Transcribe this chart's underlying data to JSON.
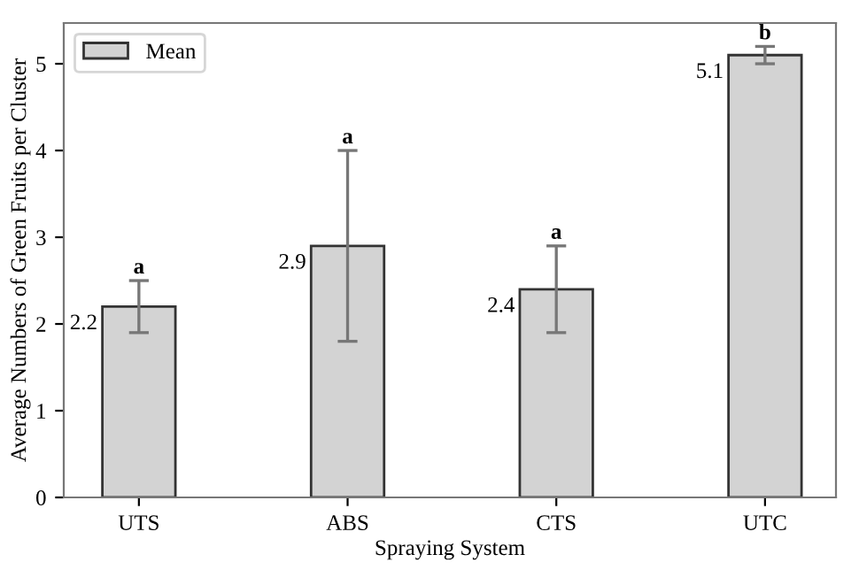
{
  "chart_data": {
    "type": "bar",
    "xlabel": "Spraying System",
    "ylabel": "Average Numbers of Green Fruits per Cluster",
    "categories": [
      "UTS",
      "ABS",
      "CTS",
      "UTC"
    ],
    "series": [
      {
        "name": "Mean",
        "color": "#d3d3d3",
        "values": [
          2.2,
          2.9,
          2.4,
          5.1
        ],
        "errors": [
          0.3,
          1.1,
          0.5,
          0.1
        ],
        "value_labels": [
          "2.2",
          "2.9",
          "2.4",
          "5.1"
        ]
      }
    ],
    "annotations": [
      {
        "text": "a",
        "x": "UTS",
        "y": 2.5
      },
      {
        "text": "a",
        "x": "ABS",
        "y": 4.0
      },
      {
        "text": "a",
        "x": "CTS",
        "y": 2.9
      },
      {
        "text": "b",
        "x": "UTC",
        "y": 5.2
      }
    ],
    "ylim": [
      0,
      5.47
    ],
    "yticks": [
      0,
      1,
      2,
      3,
      4,
      5
    ],
    "legend": "top left",
    "grid": false
  }
}
